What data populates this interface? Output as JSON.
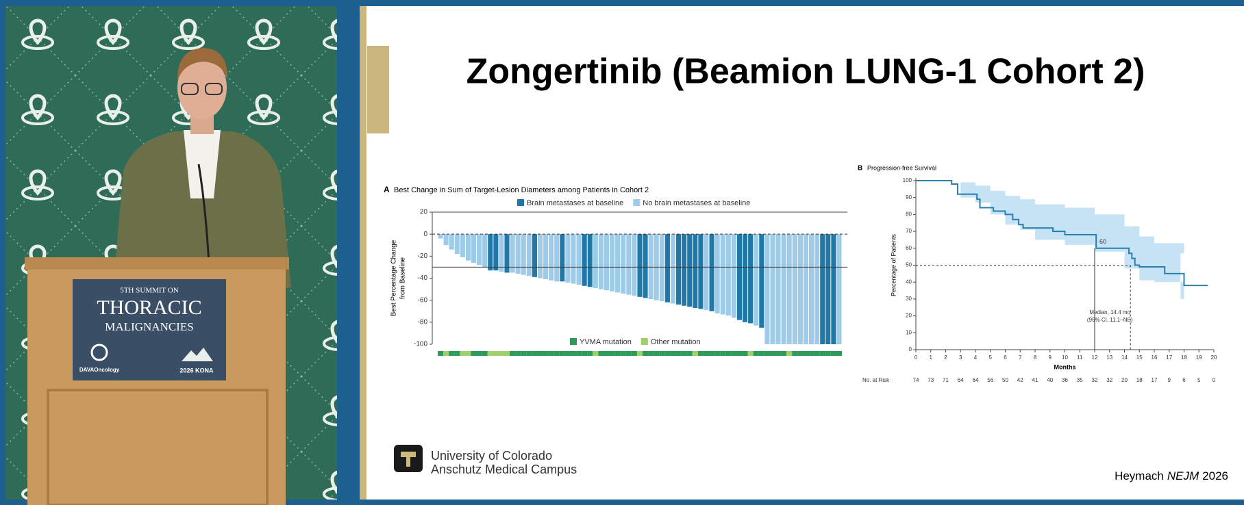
{
  "video": {
    "sign": {
      "line1": "5TH SUMMIT ON",
      "line2": "THORACIC",
      "line3": "MALIGNANCIES",
      "sponsor": "DAVAOncology",
      "event": "2026 KONA"
    }
  },
  "slide": {
    "title": "Zongertinib (Beamion LUNG-1 Cohort 2)",
    "institution": [
      "University of Colorado",
      "Anschutz Medical Campus"
    ],
    "citation": {
      "author": "Heymach",
      "journal": "NEJM",
      "year": "2026"
    }
  },
  "chart_data": [
    {
      "type": "waterfall",
      "panel": "A",
      "title": "Best Change in Sum of Target-Lesion Diameters among Patients in Cohort 2",
      "ylabel": [
        "Best Percentage Change",
        "from Baseline"
      ],
      "ylim": [
        -100,
        20
      ],
      "yticks": [
        20,
        0,
        -20,
        -40,
        -60,
        -80,
        -100
      ],
      "reference_lines": [
        {
          "value": 0,
          "style": "dashed"
        },
        {
          "value": -30,
          "style": "solid"
        }
      ],
      "series": [
        {
          "name": "Brain metastases at baseline",
          "color": "#1f78a8",
          "values": [
            null,
            null,
            null,
            null,
            null,
            null,
            null,
            null,
            null,
            -33,
            -33,
            null,
            -35,
            null,
            null,
            null,
            null,
            -39,
            null,
            null,
            null,
            null,
            -43,
            null,
            null,
            null,
            -47,
            -48,
            null,
            null,
            null,
            null,
            null,
            null,
            null,
            null,
            -57,
            -58,
            null,
            null,
            null,
            -62,
            null,
            -64,
            -65,
            -66,
            -67,
            -68,
            null,
            -70,
            null,
            null,
            null,
            null,
            -78,
            -80,
            -81,
            null,
            -85,
            null,
            null,
            null,
            null,
            null,
            null,
            null,
            null,
            null,
            null,
            -100,
            -100,
            -100,
            null
          ]
        },
        {
          "name": "No brain metastases at baseline",
          "color": "#9dcbe8",
          "values": [
            -4,
            -10,
            -14,
            -18,
            -21,
            -24,
            -26,
            -28,
            -30,
            null,
            null,
            -34,
            null,
            -35,
            -36,
            -37,
            -38,
            null,
            -40,
            -41,
            -42,
            -43,
            null,
            -44,
            -45,
            -46,
            null,
            null,
            -49,
            -50,
            -51,
            -52,
            -53,
            -54,
            -55,
            -56,
            null,
            null,
            -59,
            -60,
            -61,
            null,
            -63,
            null,
            null,
            null,
            null,
            null,
            -69,
            null,
            -72,
            -73,
            -74,
            -76,
            null,
            null,
            null,
            -83,
            null,
            -100,
            -100,
            -100,
            -100,
            -100,
            -100,
            -100,
            -100,
            -100,
            -100,
            null,
            null,
            null,
            -100
          ]
        }
      ],
      "strip": {
        "series": [
          {
            "name": "YVMA mutation",
            "color": "#2e9a5a"
          },
          {
            "name": "Other mutation",
            "color": "#9fd06c"
          }
        ],
        "values": [
          0,
          1,
          0,
          0,
          1,
          1,
          0,
          0,
          0,
          1,
          1,
          1,
          1,
          0,
          0,
          0,
          0,
          0,
          0,
          0,
          0,
          0,
          0,
          0,
          0,
          0,
          0,
          0,
          1,
          0,
          0,
          0,
          0,
          0,
          0,
          0,
          1,
          0,
          0,
          0,
          0,
          0,
          0,
          0,
          0,
          0,
          1,
          0,
          0,
          0,
          0,
          0,
          0,
          0,
          0,
          0,
          1,
          0,
          0,
          0,
          0,
          0,
          0,
          1,
          0,
          0,
          0,
          0,
          0,
          0,
          0,
          0,
          0
        ]
      }
    },
    {
      "type": "step",
      "panel": "B",
      "title": "Progression-free Survival",
      "xlabel": "Months",
      "ylabel": "Percentage of Patients",
      "xlim": [
        0,
        20
      ],
      "xticks": [
        0,
        1,
        2,
        3,
        4,
        5,
        6,
        7,
        8,
        9,
        10,
        11,
        12,
        13,
        14,
        15,
        16,
        17,
        18,
        19,
        20
      ],
      "ylim": [
        0,
        100
      ],
      "yticks": [
        0,
        10,
        20,
        30,
        40,
        50,
        60,
        70,
        80,
        90,
        100
      ],
      "color": "#2a7fa8",
      "x": [
        0,
        2.4,
        2.8,
        4,
        4.1,
        4.3,
        5.2,
        6,
        6.5,
        6.9,
        7.2,
        9.2,
        10,
        12.1,
        14.3,
        14.5,
        14.7,
        15,
        16.7,
        18,
        19.6
      ],
      "values": [
        100,
        98,
        92,
        92,
        89,
        84,
        82,
        80,
        77,
        74,
        72,
        70,
        68,
        60,
        57,
        54,
        50,
        49,
        45,
        38,
        38
      ],
      "band": {
        "color": "#bfe0f3",
        "x": [
          0,
          2.5,
          3,
          4,
          5,
          6,
          7,
          8,
          10,
          12,
          14,
          15,
          16,
          18
        ],
        "upper": [
          100,
          100,
          99,
          97,
          94,
          91,
          89,
          86,
          84,
          80,
          73,
          67,
          63,
          57
        ],
        "lower": [
          100,
          100,
          90,
          87,
          80,
          74,
          71,
          65,
          62,
          58,
          48,
          41,
          40,
          30
        ]
      },
      "median": {
        "x": 14.4,
        "y": 50,
        "label": [
          "Median, 14.4 mo",
          "(95% CI, 11.1–NE)"
        ]
      },
      "landmark": {
        "x": 12,
        "value": 60
      },
      "risk": {
        "label": "No. at Risk",
        "values": [
          74,
          73,
          71,
          64,
          64,
          56,
          50,
          42,
          41,
          40,
          36,
          35,
          32,
          32,
          20,
          18,
          17,
          9,
          6,
          5,
          0
        ]
      }
    }
  ]
}
